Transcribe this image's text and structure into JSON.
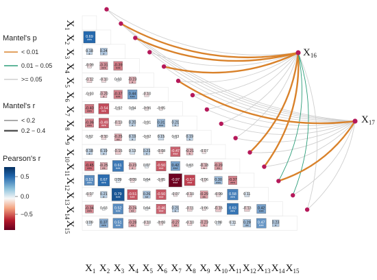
{
  "chart_data": {
    "type": "heatmap",
    "variables": [
      "X1",
      "X2",
      "X3",
      "X4",
      "X5",
      "X6",
      "X7",
      "X8",
      "X9",
      "X10",
      "X11",
      "X12",
      "X13",
      "X14",
      "X15"
    ],
    "targets": [
      "X16",
      "X17"
    ],
    "colorbar_ticks": [
      "0.5",
      "0.0",
      "−0.5"
    ],
    "clim": [
      -1,
      1
    ],
    "cells": [
      {
        "row": 1,
        "col": 1,
        "r": 0.69,
        "sig": "***"
      },
      {
        "row": 2,
        "col": 1,
        "r": 0.18,
        "sig": "*"
      },
      {
        "row": 2,
        "col": 2,
        "r": 0.24,
        "sig": "*"
      },
      {
        "row": 3,
        "col": 1,
        "r": -0.09,
        "sig": ""
      },
      {
        "row": 3,
        "col": 2,
        "r": -0.31,
        "sig": "***"
      },
      {
        "row": 3,
        "col": 3,
        "r": -0.39,
        "sig": "***"
      },
      {
        "row": 4,
        "col": 1,
        "r": -0.12,
        "sig": ""
      },
      {
        "row": 4,
        "col": 2,
        "r": -0.1,
        "sig": ""
      },
      {
        "row": 4,
        "col": 3,
        "r": 0.03,
        "sig": ""
      },
      {
        "row": 4,
        "col": 4,
        "r": -0.23,
        "sig": "*"
      },
      {
        "row": 5,
        "col": 1,
        "r": -0.03,
        "sig": ""
      },
      {
        "row": 5,
        "col": 2,
        "r": -0.2,
        "sig": "*"
      },
      {
        "row": 5,
        "col": 3,
        "r": -0.37,
        "sig": "***"
      },
      {
        "row": 5,
        "col": 4,
        "r": 0.44,
        "sig": "***"
      },
      {
        "row": 5,
        "col": 5,
        "r": -0.1,
        "sig": ""
      },
      {
        "row": 6,
        "col": 1,
        "r": -0.4,
        "sig": "***"
      },
      {
        "row": 6,
        "col": 2,
        "r": -0.54,
        "sig": "***"
      },
      {
        "row": 6,
        "col": 3,
        "r": -0.02,
        "sig": ""
      },
      {
        "row": 6,
        "col": 4,
        "r": 0.04,
        "sig": ""
      },
      {
        "row": 6,
        "col": 5,
        "r": -0.06,
        "sig": ""
      },
      {
        "row": 6,
        "col": 6,
        "r": -0.05,
        "sig": ""
      },
      {
        "row": 7,
        "col": 1,
        "r": -0.36,
        "sig": "***"
      },
      {
        "row": 7,
        "col": 2,
        "r": -0.49,
        "sig": "***"
      },
      {
        "row": 7,
        "col": 3,
        "r": -0.13,
        "sig": ""
      },
      {
        "row": 7,
        "col": 4,
        "r": 0.2,
        "sig": "*"
      },
      {
        "row": 7,
        "col": 5,
        "r": -0.01,
        "sig": ""
      },
      {
        "row": 7,
        "col": 6,
        "r": 0.31,
        "sig": "***"
      },
      {
        "row": 7,
        "col": 7,
        "r": 0.21,
        "sig": "*"
      },
      {
        "row": 8,
        "col": 1,
        "r": 0.02,
        "sig": ""
      },
      {
        "row": 8,
        "col": 2,
        "r": -0.1,
        "sig": ""
      },
      {
        "row": 8,
        "col": 3,
        "r": -0.25,
        "sig": "**"
      },
      {
        "row": 8,
        "col": 4,
        "r": 0.19,
        "sig": "*"
      },
      {
        "row": 8,
        "col": 5,
        "r": -0.02,
        "sig": ""
      },
      {
        "row": 8,
        "col": 6,
        "r": 0.15,
        "sig": ""
      },
      {
        "row": 8,
        "col": 7,
        "r": 0.03,
        "sig": ""
      },
      {
        "row": 8,
        "col": 8,
        "r": 0.19,
        "sig": "*"
      },
      {
        "row": 9,
        "col": 1,
        "r": 0.18,
        "sig": "*"
      },
      {
        "row": 9,
        "col": 2,
        "r": 0.19,
        "sig": "*"
      },
      {
        "row": 9,
        "col": 3,
        "r": -0.15,
        "sig": ""
      },
      {
        "row": 9,
        "col": 4,
        "r": 0.13,
        "sig": ""
      },
      {
        "row": 9,
        "col": 5,
        "r": 0.21,
        "sig": "*"
      },
      {
        "row": 9,
        "col": 6,
        "r": -0.08,
        "sig": ""
      },
      {
        "row": 9,
        "col": 7,
        "r": -0.47,
        "sig": "***"
      },
      {
        "row": 9,
        "col": 8,
        "r": -0.21,
        "sig": "*"
      },
      {
        "row": 9,
        "col": 9,
        "r": -0.07,
        "sig": ""
      },
      {
        "row": 10,
        "col": 1,
        "r": -0.45,
        "sig": "***"
      },
      {
        "row": 10,
        "col": 2,
        "r": -0.25,
        "sig": "**"
      },
      {
        "row": 10,
        "col": 3,
        "r": 0.61,
        "sig": "***"
      },
      {
        "row": 10,
        "col": 4,
        "r": -0.23,
        "sig": "*"
      },
      {
        "row": 10,
        "col": 5,
        "r": 0.07,
        "sig": ""
      },
      {
        "row": 10,
        "col": 6,
        "r": -0.5,
        "sig": "***"
      },
      {
        "row": 10,
        "col": 7,
        "r": 0.42,
        "sig": "***"
      },
      {
        "row": 10,
        "col": 8,
        "r": 0.03,
        "sig": ""
      },
      {
        "row": 10,
        "col": 9,
        "r": -0.18,
        "sig": "*"
      },
      {
        "row": 10,
        "col": 10,
        "r": -0.29,
        "sig": "**"
      },
      {
        "row": 11,
        "col": 1,
        "r": 0.51,
        "sig": "***"
      },
      {
        "row": 11,
        "col": 2,
        "r": 0.67,
        "sig": "***"
      },
      {
        "row": 11,
        "col": 3,
        "r": 0.09,
        "sig": ""
      },
      {
        "row": 11,
        "col": 4,
        "r": -0.09,
        "sig": ""
      },
      {
        "row": 11,
        "col": 5,
        "r": 0.04,
        "sig": ""
      },
      {
        "row": 11,
        "col": 6,
        "r": -0.05,
        "sig": ""
      },
      {
        "row": 11,
        "col": 7,
        "r": -0.97,
        "sig": "***"
      },
      {
        "row": 11,
        "col": 8,
        "r": -0.57,
        "sig": "***"
      },
      {
        "row": 11,
        "col": 9,
        "r": -0.06,
        "sig": ""
      },
      {
        "row": 11,
        "col": 10,
        "r": 0.3,
        "sig": "***"
      },
      {
        "row": 11,
        "col": 11,
        "r": -0.37,
        "sig": "***"
      },
      {
        "row": 12,
        "col": 1,
        "r": -0.07,
        "sig": ""
      },
      {
        "row": 12,
        "col": 2,
        "r": 0.21,
        "sig": "*"
      },
      {
        "row": 12,
        "col": 3,
        "r": 0.79,
        "sig": "***"
      },
      {
        "row": 12,
        "col": 4,
        "r": -0.51,
        "sig": "***"
      },
      {
        "row": 12,
        "col": 5,
        "r": 0.26,
        "sig": "**"
      },
      {
        "row": 12,
        "col": 6,
        "r": -0.5,
        "sig": "***"
      },
      {
        "row": 12,
        "col": 7,
        "r": -0.07,
        "sig": ""
      },
      {
        "row": 12,
        "col": 8,
        "r": -0.1,
        "sig": ""
      },
      {
        "row": 12,
        "col": 9,
        "r": -0.29,
        "sig": "**"
      },
      {
        "row": 12,
        "col": 10,
        "r": -0.09,
        "sig": ""
      },
      {
        "row": 12,
        "col": 11,
        "r": 0.58,
        "sig": "***"
      },
      {
        "row": 12,
        "col": 12,
        "r": 0.11,
        "sig": ""
      },
      {
        "row": 13,
        "col": 1,
        "r": -0.34,
        "sig": "***"
      },
      {
        "row": 13,
        "col": 2,
        "r": 0.03,
        "sig": ""
      },
      {
        "row": 13,
        "col": 3,
        "r": 0.52,
        "sig": "***"
      },
      {
        "row": 13,
        "col": 4,
        "r": -0.24,
        "sig": "**"
      },
      {
        "row": 13,
        "col": 5,
        "r": 0.04,
        "sig": ""
      },
      {
        "row": 13,
        "col": 6,
        "r": -0.46,
        "sig": "***"
      },
      {
        "row": 13,
        "col": 7,
        "r": 0.21,
        "sig": "*"
      },
      {
        "row": 13,
        "col": 8,
        "r": -0.11,
        "sig": ""
      },
      {
        "row": 13,
        "col": 9,
        "r": -0.06,
        "sig": ""
      },
      {
        "row": 13,
        "col": 10,
        "r": -0.16,
        "sig": ""
      },
      {
        "row": 13,
        "col": 11,
        "r": 0.63,
        "sig": "***"
      },
      {
        "row": 13,
        "col": 12,
        "r": -0.13,
        "sig": ""
      },
      {
        "row": 13,
        "col": 13,
        "r": 0.42,
        "sig": "***"
      },
      {
        "row": 14,
        "col": 1,
        "r": 0.09,
        "sig": ""
      },
      {
        "row": 14,
        "col": 2,
        "r": 0.37,
        "sig": "***"
      },
      {
        "row": 14,
        "col": 3,
        "r": 0.51,
        "sig": "***"
      },
      {
        "row": 14,
        "col": 4,
        "r": -0.28,
        "sig": "**"
      },
      {
        "row": 14,
        "col": 5,
        "r": -0.1,
        "sig": ""
      },
      {
        "row": 14,
        "col": 6,
        "r": -0.08,
        "sig": ""
      },
      {
        "row": 14,
        "col": 7,
        "r": -0.27,
        "sig": "**"
      },
      {
        "row": 14,
        "col": 8,
        "r": -0.1,
        "sig": ""
      },
      {
        "row": 14,
        "col": 9,
        "r": -0.23,
        "sig": "*"
      },
      {
        "row": 14,
        "col": 10,
        "r": 0.08,
        "sig": ""
      },
      {
        "row": 14,
        "col": 11,
        "r": 0.11,
        "sig": ""
      },
      {
        "row": 14,
        "col": 12,
        "r": 0.29,
        "sig": "**"
      },
      {
        "row": 14,
        "col": 13,
        "r": 0.47,
        "sig": "***"
      },
      {
        "row": 14,
        "col": 14,
        "r": 0.23,
        "sig": "*"
      }
    ],
    "mantel_links": [
      {
        "target": "X16",
        "var": "X2",
        "p": "< 0.01",
        "r": "0.2 − 0.4"
      },
      {
        "target": "X16",
        "var": "X3",
        "p": "< 0.01",
        "r": "0.2 − 0.4"
      },
      {
        "target": "X16",
        "var": "X5",
        "p": "< 0.01",
        "r": "0.2 − 0.4"
      },
      {
        "target": "X16",
        "var": "X11",
        "p": "< 0.01",
        "r": "0.2 − 0.4"
      },
      {
        "target": "X16",
        "var": "X12",
        "p": "< 0.01",
        "r": "0.2 − 0.4"
      },
      {
        "target": "X16",
        "var": "X13",
        "p": "0.01 − 0.05",
        "r": "< 0.2"
      },
      {
        "target": "X16",
        "var": "X14",
        "p": "0.01 − 0.05",
        "r": "< 0.2"
      },
      {
        "target": "X16",
        "var": "X1",
        "p": ">= 0.05",
        "r": "< 0.2"
      },
      {
        "target": "X16",
        "var": "X4",
        "p": ">= 0.05",
        "r": "< 0.2"
      },
      {
        "target": "X16",
        "var": "X6",
        "p": ">= 0.05",
        "r": "< 0.2"
      },
      {
        "target": "X16",
        "var": "X7",
        "p": ">= 0.05",
        "r": "< 0.2"
      },
      {
        "target": "X16",
        "var": "X8",
        "p": ">= 0.05",
        "r": "< 0.2"
      },
      {
        "target": "X16",
        "var": "X9",
        "p": ">= 0.05",
        "r": "< 0.2"
      },
      {
        "target": "X16",
        "var": "X10",
        "p": ">= 0.05",
        "r": "< 0.2"
      },
      {
        "target": "X16",
        "var": "X15",
        "p": ">= 0.05",
        "r": "< 0.2"
      },
      {
        "target": "X17",
        "var": "X6",
        "p": "< 0.01",
        "r": "0.2 − 0.4"
      },
      {
        "target": "X17",
        "var": "X13",
        "p": "< 0.01",
        "r": "0.2 − 0.4"
      },
      {
        "target": "X17",
        "var": "X1",
        "p": ">= 0.05",
        "r": "< 0.2"
      },
      {
        "target": "X17",
        "var": "X2",
        "p": ">= 0.05",
        "r": "< 0.2"
      },
      {
        "target": "X17",
        "var": "X3",
        "p": ">= 0.05",
        "r": "< 0.2"
      },
      {
        "target": "X17",
        "var": "X4",
        "p": ">= 0.05",
        "r": "< 0.2"
      },
      {
        "target": "X17",
        "var": "X5",
        "p": ">= 0.05",
        "r": "< 0.2"
      },
      {
        "target": "X17",
        "var": "X7",
        "p": ">= 0.05",
        "r": "< 0.2"
      },
      {
        "target": "X17",
        "var": "X8",
        "p": ">= 0.05",
        "r": "< 0.2"
      },
      {
        "target": "X17",
        "var": "X9",
        "p": ">= 0.05",
        "r": "< 0.2"
      },
      {
        "target": "X17",
        "var": "X10",
        "p": ">= 0.05",
        "r": "< 0.2"
      },
      {
        "target": "X17",
        "var": "X11",
        "p": ">= 0.05",
        "r": "< 0.2"
      },
      {
        "target": "X17",
        "var": "X12",
        "p": ">= 0.05",
        "r": "< 0.2"
      },
      {
        "target": "X17",
        "var": "X14",
        "p": ">= 0.05",
        "r": "< 0.2"
      },
      {
        "target": "X17",
        "var": "X15",
        "p": ">= 0.05",
        "r": "< 0.2"
      }
    ]
  },
  "legend": {
    "mantel_p_title": "Mantel's p",
    "mantel_p_items": [
      {
        "label": "< 0.01",
        "color": "#d9822b"
      },
      {
        "label": "0.01 − 0.05",
        "color": "#2a9d78"
      },
      {
        "label": ">= 0.05",
        "color": "#cfcfcf"
      }
    ],
    "mantel_r_title": "Mantel's r",
    "mantel_r_items": [
      "< 0.2",
      "0.2 − 0.4"
    ],
    "pearson_title": "Pearson's r"
  },
  "colors": {
    "positive": "#2166ac",
    "negative": "#b2182b",
    "neutral": "#ffffff",
    "node": "#b5195a"
  }
}
